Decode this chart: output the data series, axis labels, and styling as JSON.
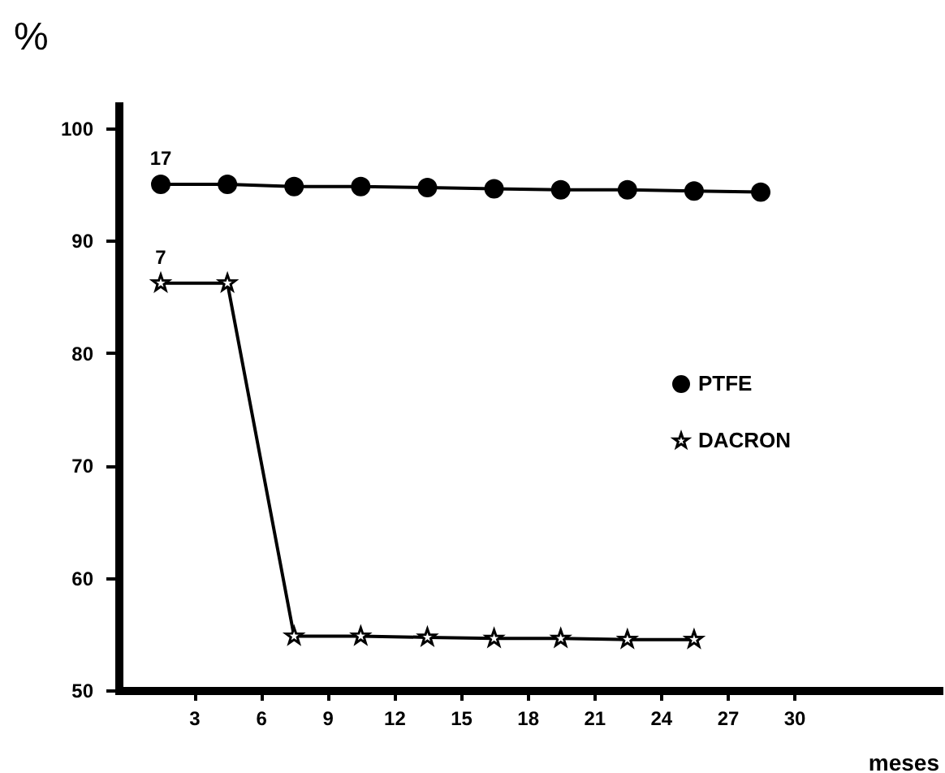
{
  "chart_data": {
    "type": "line",
    "xlabel": "meses",
    "ylabel": "%",
    "xlim": [
      -0.4,
      36.5
    ],
    "xticks": [
      3,
      6,
      9,
      12,
      15,
      18,
      21,
      24,
      27,
      30
    ],
    "ylim": [
      50,
      102
    ],
    "yticks": [
      50,
      60,
      70,
      80,
      90,
      100
    ],
    "grid": false,
    "legend": "right",
    "series": [
      {
        "name": "PTFE",
        "color": "#000000",
        "marker": "circle",
        "x": [
          1.5,
          4.5,
          7.5,
          10.5,
          13.5,
          16.5,
          19.5,
          22.5,
          25.5,
          28.5
        ],
        "values": [
          95,
          95,
          94.8,
          94.8,
          94.7,
          94.6,
          94.5,
          94.5,
          94.4,
          94.3
        ]
      },
      {
        "name": "DACRON",
        "color": "#000000",
        "marker": "star",
        "x": [
          1.5,
          4.5,
          7.5,
          10.5,
          13.5,
          16.5,
          19.5,
          22.5,
          25.5
        ],
        "values": [
          86.2,
          86.2,
          54.8,
          54.8,
          54.7,
          54.6,
          54.6,
          54.5,
          54.5
        ]
      }
    ],
    "annotations": [
      {
        "text": "17",
        "x": 1.5,
        "y": 95
      },
      {
        "text": "7",
        "x": 1.5,
        "y": 86.2
      }
    ]
  }
}
